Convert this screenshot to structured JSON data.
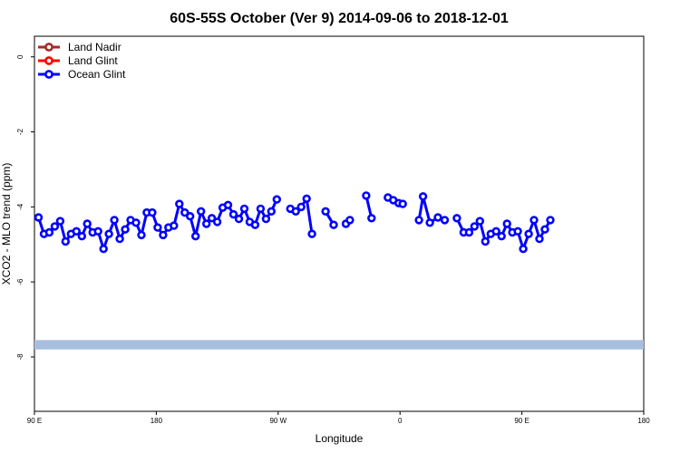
{
  "chart_data": {
    "type": "line",
    "title": "60S-55S October (Ver 9)   2014-09-06 to 2018-12-01",
    "xlabel": "Longitude",
    "ylabel": "XCO2 - MLO trend (ppm)",
    "x_ticks": [
      {
        "value": 90,
        "label": "90 E"
      },
      {
        "value": 180,
        "label": "180"
      },
      {
        "value": 270,
        "label": "90 W"
      },
      {
        "value": 360,
        "label": "0"
      },
      {
        "value": 450,
        "label": "90 E"
      },
      {
        "value": 540,
        "label": "180"
      }
    ],
    "y_ticks": [
      0,
      -2,
      -4,
      -6,
      -8
    ],
    "xlim": [
      90,
      540
    ],
    "ylim": [
      -9.45,
      0.55
    ],
    "legend": {
      "placement": "top-left",
      "items": [
        {
          "name": "Land Nadir",
          "color": "#a52a2a"
        },
        {
          "name": "Land Glint",
          "color": "#ff0000"
        },
        {
          "name": "Ocean Glint",
          "color": "#0000ff"
        }
      ]
    },
    "band": {
      "y_from": -7.55,
      "y_to": -7.8,
      "color": "#a8bedf"
    },
    "series": [
      {
        "name": "Ocean Glint",
        "color": "#0000ff",
        "segments": [
          [
            [
              93,
              -4.28
            ],
            [
              97,
              -4.72
            ],
            [
              101,
              -4.68
            ],
            [
              105,
              -4.52
            ],
            [
              109,
              -4.38
            ],
            [
              113,
              -4.92
            ],
            [
              117,
              -4.72
            ],
            [
              121,
              -4.65
            ],
            [
              125,
              -4.78
            ],
            [
              129,
              -4.45
            ],
            [
              133,
              -4.68
            ],
            [
              137,
              -4.65
            ],
            [
              141,
              -5.12
            ],
            [
              145,
              -4.72
            ],
            [
              149,
              -4.35
            ],
            [
              153,
              -4.85
            ],
            [
              157,
              -4.6
            ],
            [
              161,
              -4.35
            ],
            [
              165,
              -4.42
            ],
            [
              169,
              -4.75
            ],
            [
              173,
              -4.15
            ],
            [
              177,
              -4.15
            ],
            [
              181,
              -4.55
            ],
            [
              185,
              -4.75
            ],
            [
              189,
              -4.55
            ],
            [
              193,
              -4.5
            ],
            [
              197,
              -3.92
            ],
            [
              201,
              -4.15
            ],
            [
              205,
              -4.25
            ],
            [
              209,
              -4.78
            ],
            [
              213,
              -4.12
            ],
            [
              217,
              -4.45
            ],
            [
              221,
              -4.3
            ],
            [
              225,
              -4.4
            ],
            [
              229,
              -4.02
            ],
            [
              233,
              -3.95
            ],
            [
              237,
              -4.2
            ],
            [
              241,
              -4.32
            ],
            [
              245,
              -4.05
            ],
            [
              249,
              -4.4
            ],
            [
              253,
              -4.48
            ],
            [
              257,
              -4.05
            ],
            [
              261,
              -4.32
            ],
            [
              265,
              -4.12
            ],
            [
              269,
              -3.8
            ]
          ],
          [
            [
              279,
              -4.05
            ],
            [
              283,
              -4.12
            ],
            [
              287,
              -4.0
            ],
            [
              291,
              -3.78
            ],
            [
              295,
              -4.72
            ]
          ],
          [
            [
              305,
              -4.12
            ],
            [
              311,
              -4.48
            ]
          ],
          [
            [
              320,
              -4.45
            ],
            [
              323,
              -4.35
            ]
          ],
          [
            [
              335,
              -3.7
            ],
            [
              339,
              -4.3
            ]
          ],
          [
            [
              351,
              -3.75
            ],
            [
              355,
              -3.82
            ],
            [
              359,
              -3.9
            ],
            [
              362,
              -3.92
            ]
          ],
          [
            [
              374,
              -4.35
            ],
            [
              377,
              -3.72
            ],
            [
              382,
              -4.42
            ],
            [
              388,
              -4.28
            ],
            [
              393,
              -4.35
            ]
          ],
          [
            [
              402,
              -4.3
            ],
            [
              407,
              -4.68
            ],
            [
              411,
              -4.68
            ],
            [
              415,
              -4.52
            ],
            [
              419,
              -4.38
            ],
            [
              423,
              -4.92
            ],
            [
              427,
              -4.72
            ],
            [
              431,
              -4.65
            ],
            [
              435,
              -4.78
            ],
            [
              439,
              -4.45
            ],
            [
              443,
              -4.68
            ],
            [
              447,
              -4.65
            ],
            [
              451,
              -5.12
            ],
            [
              455,
              -4.72
            ],
            [
              459,
              -4.35
            ],
            [
              463,
              -4.85
            ],
            [
              467,
              -4.6
            ],
            [
              471,
              -4.35
            ]
          ]
        ]
      }
    ]
  }
}
